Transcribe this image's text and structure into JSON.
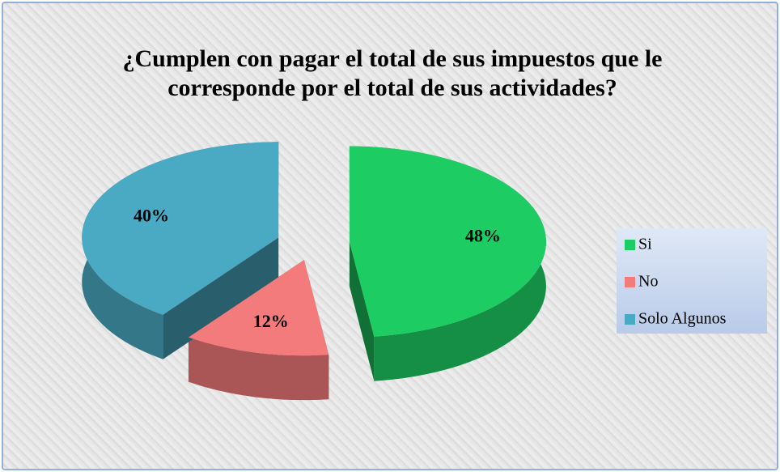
{
  "chart_data": {
    "type": "pie3d",
    "title": "¿Cumplen con pagar el total de sus impuestos que le corresponde por el total de sus actividades?",
    "categories": [
      "Si",
      "No",
      "Solo Algunos"
    ],
    "values": [
      48,
      12,
      40
    ],
    "value_labels": [
      "48%",
      "12%",
      "40%"
    ],
    "colors": [
      "#1dcc63",
      "#f47b7b",
      "#4aaac4"
    ],
    "legend": "right"
  }
}
